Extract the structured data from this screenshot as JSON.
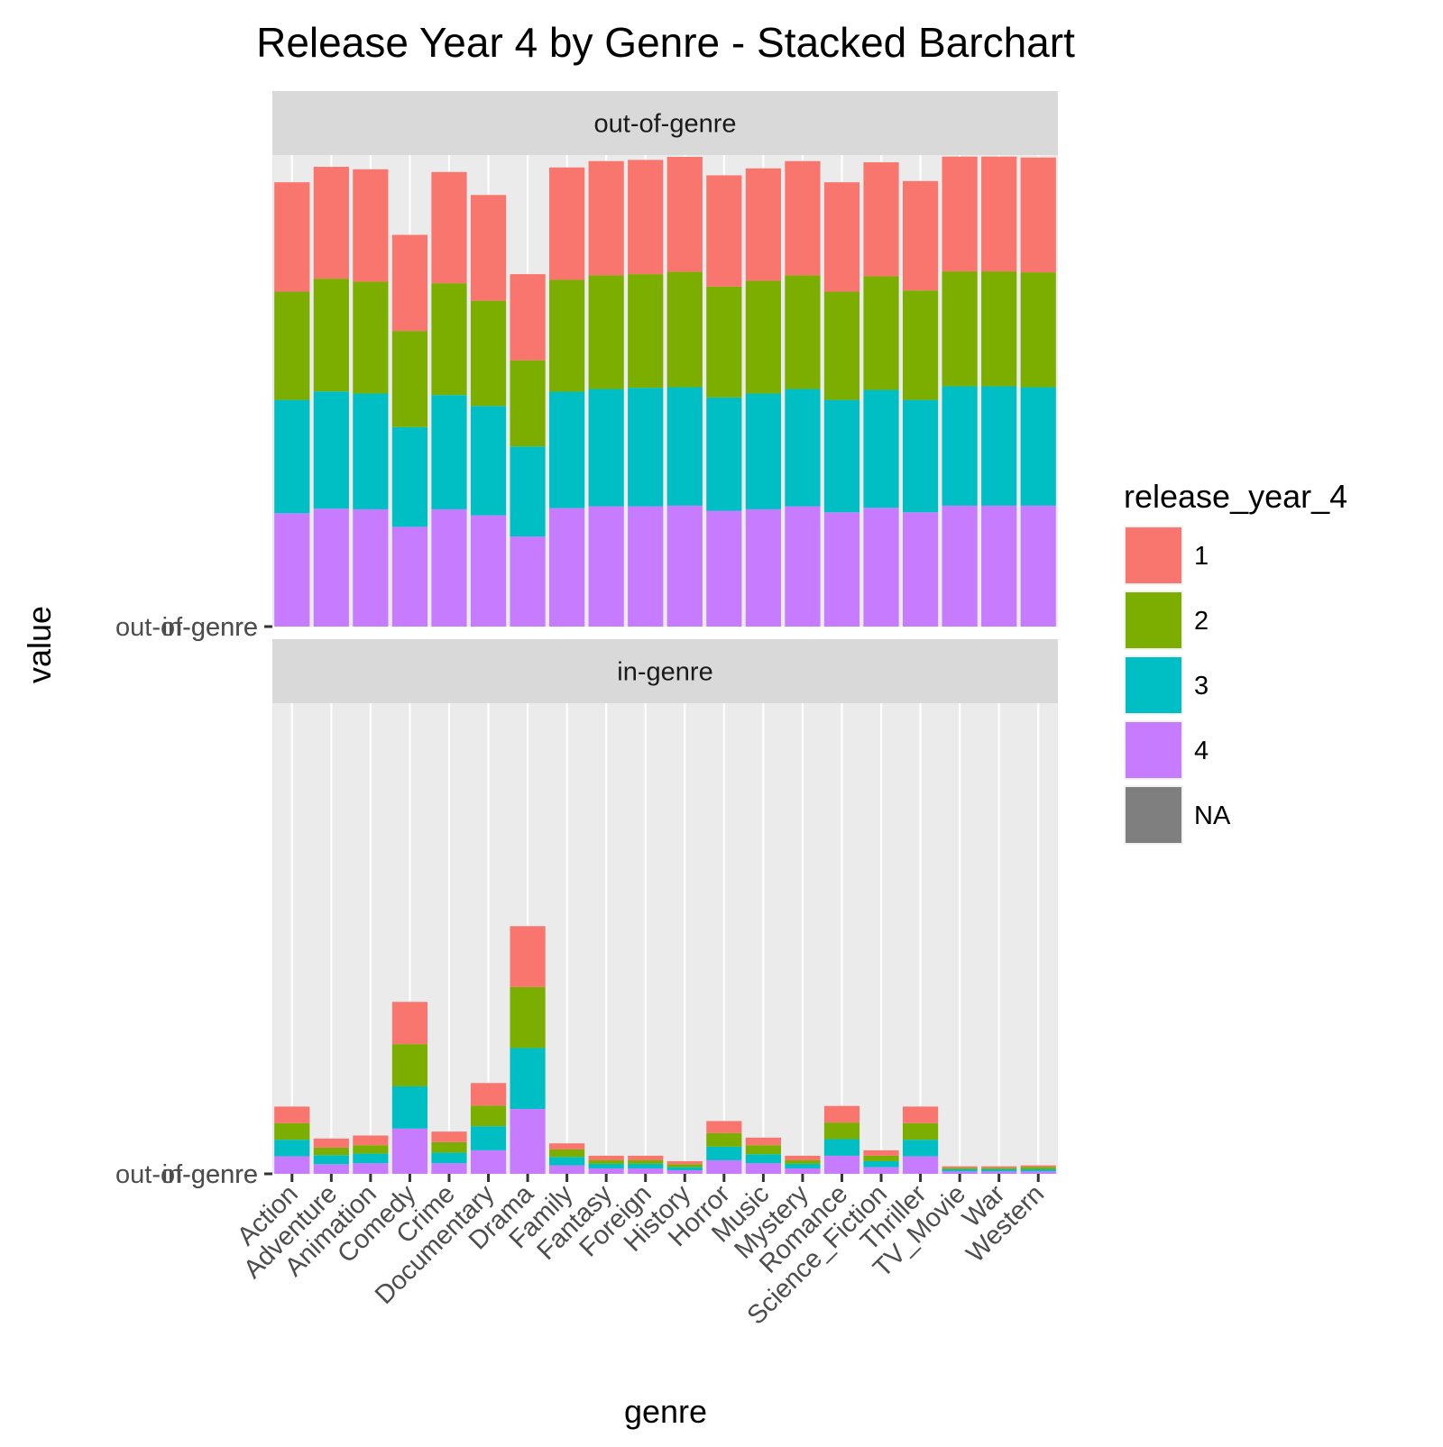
{
  "chart_data": {
    "type": "bar",
    "stacked": true,
    "title": "Release Year 4 by Genre - Stacked Barchart",
    "xlabel": "genre",
    "ylabel": "value",
    "categories": [
      "Action",
      "Adventure",
      "Animation",
      "Comedy",
      "Crime",
      "Documentary",
      "Drama",
      "Family",
      "Fantasy",
      "Foreign",
      "History",
      "Horror",
      "Music",
      "Mystery",
      "Romance",
      "Science_Fiction",
      "Thriller",
      "TV_Movie",
      "War",
      "Western"
    ],
    "legend": {
      "title": "release_year_4",
      "position": "right",
      "entries": [
        {
          "label": "1",
          "color": "#F8766D"
        },
        {
          "label": "2",
          "color": "#7CAE00"
        },
        {
          "label": "3",
          "color": "#00BFC4"
        },
        {
          "label": "4",
          "color": "#C77CFF"
        },
        {
          "label": "NA",
          "color": "#7F7F7F"
        }
      ]
    },
    "ylim": [
      0,
      1560
    ],
    "grid": true,
    "panels": [
      {
        "strip": "out-of-genre",
        "y_tick_labels": [
          "out-of-genre",
          "in-genre"
        ],
        "series": [
          {
            "name": "4",
            "values": [
              375,
              390,
              388,
              330,
              388,
              368,
              298,
              392,
              398,
              398,
              400,
              383,
              388,
              398,
              378,
              393,
              378,
              400,
              400,
              400
            ]
          },
          {
            "name": "3",
            "values": [
              375,
              388,
              383,
              330,
              378,
              362,
              298,
              385,
              388,
              392,
              392,
              375,
              383,
              388,
              372,
              390,
              372,
              395,
              395,
              392
            ]
          },
          {
            "name": "2",
            "values": [
              358,
              373,
              370,
              318,
              370,
              348,
              285,
              370,
              376,
              376,
              382,
              367,
              373,
              376,
              358,
              376,
              362,
              380,
              380,
              380
            ]
          },
          {
            "name": "1",
            "values": [
              362,
              370,
              372,
              318,
              368,
              350,
              285,
              372,
              378,
              378,
              380,
              368,
              372,
              378,
              362,
              377,
              362,
              380,
              380,
              380
            ]
          }
        ]
      },
      {
        "strip": "in-genre",
        "y_tick_labels": [
          "out-of-genre",
          "in-genre"
        ],
        "series": [
          {
            "name": "4",
            "values": [
              58,
              32,
              35,
              150,
              35,
              78,
              215,
              28,
              18,
              18,
              12,
              45,
              35,
              18,
              60,
              22,
              58,
              8,
              8,
              8
            ]
          },
          {
            "name": "3",
            "values": [
              55,
              30,
              32,
              140,
              35,
              80,
              202,
              28,
              15,
              15,
              10,
              45,
              30,
              15,
              55,
              20,
              55,
              7,
              7,
              7
            ]
          },
          {
            "name": "2",
            "values": [
              55,
              25,
              28,
              140,
              35,
              68,
              202,
              25,
              12,
              12,
              10,
              45,
              30,
              12,
              55,
              18,
              55,
              5,
              5,
              8
            ]
          },
          {
            "name": "1",
            "values": [
              55,
              30,
              32,
              140,
              35,
              75,
              202,
              20,
              15,
              15,
              10,
              40,
              25,
              15,
              55,
              18,
              55,
              5,
              5,
              5
            ]
          }
        ]
      }
    ]
  }
}
